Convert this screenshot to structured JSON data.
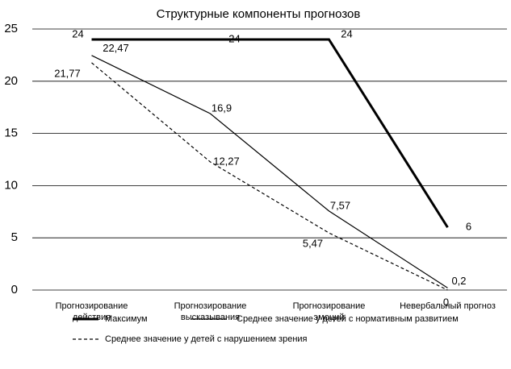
{
  "chart_data": {
    "type": "line",
    "title": "Структурные компоненты прогнозов",
    "categories": [
      "Прогнозирование\nдействия",
      "Прогнозирование\nвысказывания",
      "Прогнозирование\nэмоций",
      "Невербальный прогноз"
    ],
    "series": [
      {
        "name": "Максимум",
        "color": "#000000",
        "values": [
          24,
          24,
          24,
          6
        ]
      },
      {
        "name": "Среднее значение у детей с нормативным развитием",
        "color": "#000000",
        "values": [
          22.47,
          16.9,
          7.57,
          0.2
        ],
        "value_labels": [
          "22,47",
          "16,9",
          "7,57",
          "0,2"
        ]
      },
      {
        "name": "Среднее значение у детей с нарушением зрения",
        "color": "#000000",
        "values": [
          21.77,
          12.27,
          5.47,
          0
        ],
        "value_labels": [
          "21,77",
          "12,27",
          "5,47",
          "0"
        ]
      }
    ],
    "ylim": [
      0,
      25
    ],
    "yticks": [
      0,
      5,
      10,
      15,
      20,
      25
    ],
    "grid": true
  }
}
